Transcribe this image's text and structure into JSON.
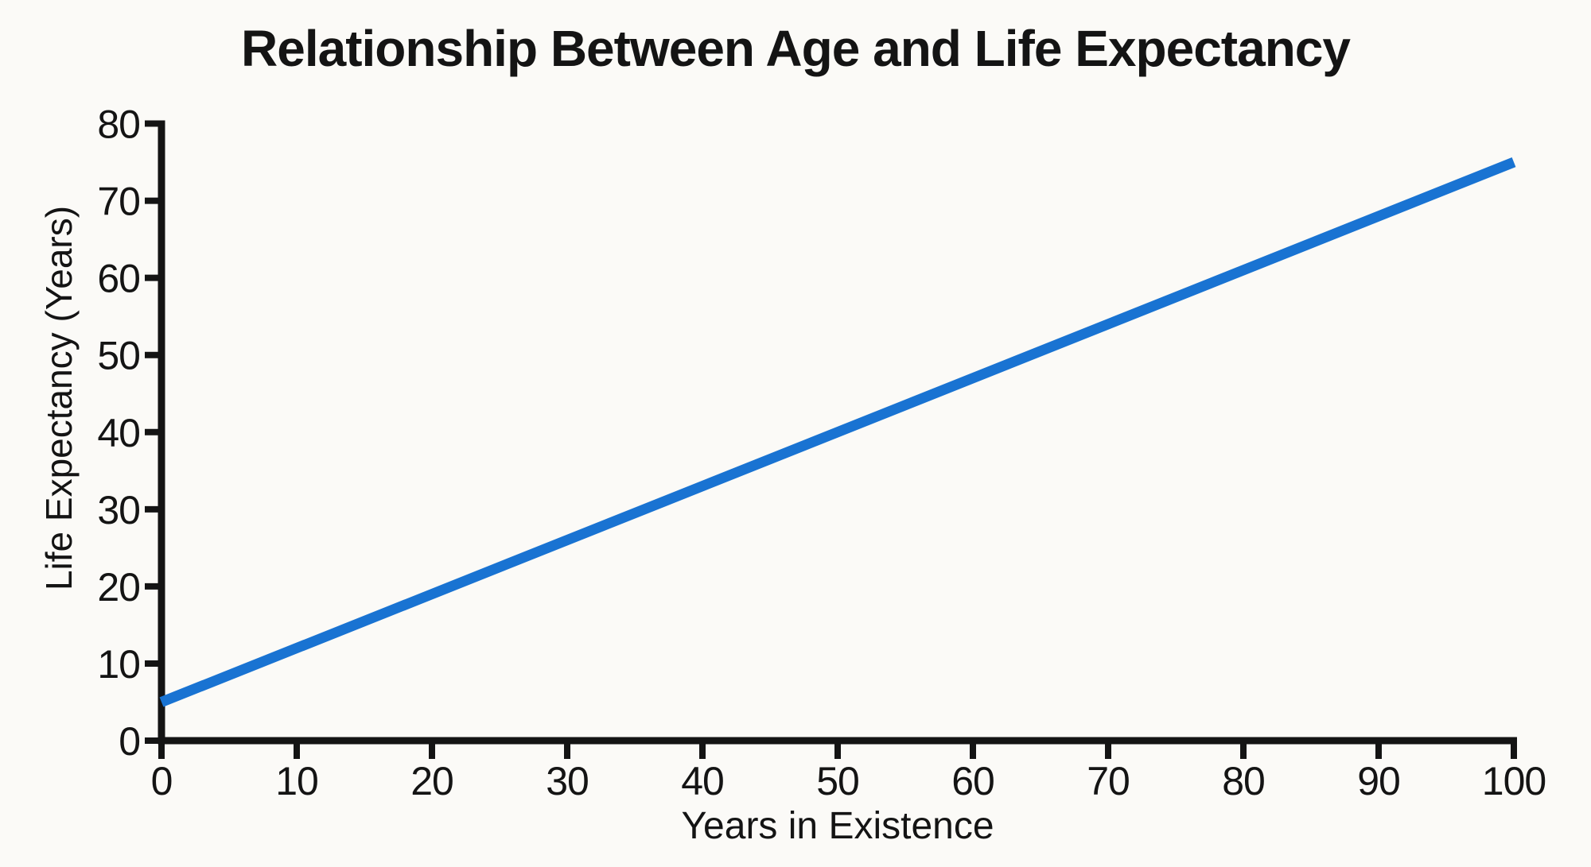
{
  "chart_data": {
    "type": "line",
    "title": "Relationship Between Age and Life Expectancy",
    "xlabel": "Years in Existence",
    "ylabel": "Life Expectancy (Years)",
    "x": [
      0,
      100
    ],
    "y": [
      5,
      75
    ],
    "series": [
      {
        "name": "Life Expectancy",
        "x": [
          0,
          100
        ],
        "y": [
          5,
          75
        ]
      }
    ],
    "xlim": [
      0,
      100
    ],
    "ylim": [
      0,
      80
    ],
    "xticks": [
      0,
      10,
      20,
      30,
      40,
      50,
      60,
      70,
      80,
      90,
      100
    ],
    "yticks": [
      0,
      10,
      20,
      30,
      40,
      50,
      60,
      70,
      80
    ],
    "grid": false,
    "legend_position": "none",
    "line_color": "#1973d2",
    "axis_color": "#141414",
    "text_color": "#141414",
    "background_color": "#fbfaf7"
  }
}
